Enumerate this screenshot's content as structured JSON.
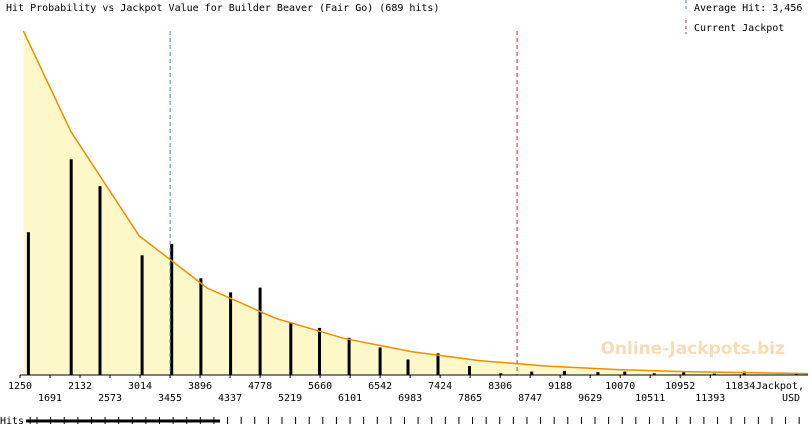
{
  "chart_data": {
    "type": "bar",
    "title": "Hit Probability vs Jackpot Value for Builder Beaver (Fair Go) (689 hits)",
    "legend": [
      {
        "label": "Average Hit: 3,456",
        "style": "dashed",
        "color": "#3a8fc4"
      },
      {
        "label": "Current Jackpot",
        "style": "dashed",
        "color": "#c4323a"
      }
    ],
    "legend_placement": "top-right",
    "watermark": "Online-Jackpots.biz",
    "xlabel": "Jackpot,",
    "xlabel_unit": "USD",
    "hits_label": "Hits",
    "xlim": [
      1250,
      12830
    ],
    "ylim": [
      0,
      1
    ],
    "x_ticks_top": [
      "1250",
      "2132",
      "3014",
      "3896",
      "4778",
      "5660",
      "6542",
      "7424",
      "8306",
      "9188",
      "10070",
      "10952",
      "11834"
    ],
    "x_ticks_bottom": [
      "1691",
      "2573",
      "3455",
      "4337",
      "5219",
      "6101",
      "6983",
      "7865",
      "8747",
      "9629",
      "10511",
      "11393"
    ],
    "average_hit": 3456,
    "current_jackpot": 8555,
    "bars": {
      "x": [
        1374,
        2002,
        2426,
        3045,
        3479,
        3908,
        4345,
        4779,
        5230,
        5652,
        6086,
        6542,
        6952,
        7393,
        7856,
        8316,
        8769,
        9250,
        9743,
        10138,
        10570,
        11003,
        11453,
        11892,
        12658
      ],
      "values": [
        0.415,
        0.627,
        0.549,
        0.348,
        0.381,
        0.281,
        0.24,
        0.254,
        0.153,
        0.137,
        0.108,
        0.08,
        0.045,
        0.063,
        0.026,
        0.005,
        0.01,
        0.012,
        0.008,
        0.01,
        0.005,
        0.008,
        0.004,
        0.01,
        0.003
      ]
    },
    "fit_curve": {
      "x": [
        1300,
        2000,
        3000,
        4000,
        5000,
        6000,
        7000,
        8000,
        9000,
        10000,
        11000,
        12830
      ],
      "values": [
        1.0,
        0.707,
        0.405,
        0.253,
        0.165,
        0.107,
        0.068,
        0.042,
        0.026,
        0.016,
        0.01,
        0.004
      ]
    },
    "hit_markers_x": [
      1400,
      1500,
      1700,
      1900,
      2100,
      2300,
      2500,
      2700,
      2900,
      3100,
      3300,
      3500,
      3700,
      3900,
      4100,
      4300,
      4500,
      4700,
      4900,
      5100,
      5300,
      5500,
      5700,
      5900,
      6100,
      6300,
      6500,
      6700,
      6900,
      7100,
      7300,
      7500,
      7700,
      7900,
      8100,
      8300,
      8500,
      8700,
      8900,
      9100,
      9300,
      9500,
      9700,
      9900,
      10100,
      10300,
      10500,
      10700,
      10900,
      11100,
      11300,
      11500,
      11700,
      11900,
      12100,
      12300,
      12500,
      12700
    ]
  }
}
